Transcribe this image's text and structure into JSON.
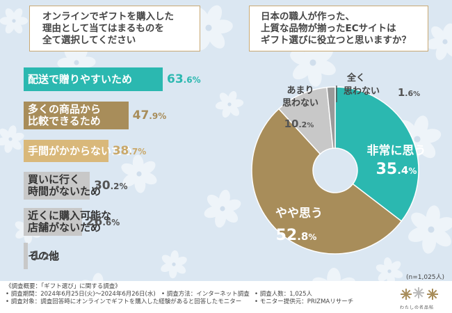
{
  "left_question": {
    "lines": [
      "オンラインでギフトを購入した",
      "理由として当てはまるものを",
      "全て選択してください"
    ]
  },
  "right_question": {
    "lines": [
      "日本の職人が作った、",
      "上質な品物が揃ったECサイトは",
      "ギフト選びに役立つと思いますか？"
    ]
  },
  "chart_data": [
    {
      "type": "bar",
      "orientation": "horizontal",
      "title": "オンラインでギフトを購入した理由として当てはまるものを全て選択してください",
      "unit": "%",
      "categories": [
        "配送で贈りやすいため",
        "多くの商品から比較できるため",
        "手間がかからないため",
        "買いに行く時間がないため",
        "近くに購入可能な店舗がないため",
        "その他"
      ],
      "values": [
        63.6,
        47.9,
        38.7,
        30.2,
        26.6,
        1.2
      ],
      "display": [
        {
          "label_lines": [
            "配送で贈りやすいため"
          ],
          "int": "63",
          "dec": ".6",
          "pct": "%",
          "color": "#2bb8b0",
          "text_color": "#ffffff",
          "pct_color": "#2bb8b0"
        },
        {
          "label_lines": [
            "多くの商品から",
            "比較できるため"
          ],
          "int": "47",
          "dec": ".9",
          "pct": "%",
          "color": "#a88d5a",
          "text_color": "#ffffff",
          "pct_color": "#a88d5a"
        },
        {
          "label_lines": [
            "手間がかからないため"
          ],
          "int": "38",
          "dec": ".7",
          "pct": "%",
          "color": "#d9b87a",
          "text_color": "#ffffff",
          "pct_color": "#c9a86a"
        },
        {
          "label_lines": [
            "買いに行く",
            "時間がないため"
          ],
          "int": "30",
          "dec": ".2",
          "pct": "%",
          "color": "#c8c8c8",
          "text_color": "#333333",
          "pct_color": "#555555"
        },
        {
          "label_lines": [
            "近くに購入可能な",
            "店舗がないため"
          ],
          "int": "26",
          "dec": ".6",
          "pct": "%",
          "color": "#c8c8c8",
          "text_color": "#333333",
          "pct_color": "#555555"
        },
        {
          "label_lines": [
            "その他"
          ],
          "int": "1",
          "dec": ".2",
          "pct": "%",
          "color": "#c8c8c8",
          "text_color": "#333333",
          "pct_color": "#555555"
        }
      ]
    },
    {
      "type": "pie",
      "style": "donut",
      "title": "日本の職人が作った、上質な品物が揃ったECサイトはギフト選びに役立つと思いますか？",
      "unit": "%",
      "categories": [
        "非常に思う",
        "やや思う",
        "あまり思わない",
        "全く思わない"
      ],
      "values": [
        35.4,
        52.8,
        10.2,
        1.6
      ],
      "colors": [
        "#2bb8b0",
        "#a88d5a",
        "#c8c8c8",
        "#9a9a9a"
      ],
      "display": [
        {
          "label": "非常に思う",
          "int": "35",
          "dec": ".4",
          "pct": "%",
          "inside": true
        },
        {
          "label": "やや思う",
          "int": "52",
          "dec": ".8",
          "pct": "%",
          "inside": true
        },
        {
          "label_lines": [
            "あまり",
            "思わない"
          ],
          "int": "10",
          "dec": ".2",
          "pct": "%",
          "inside": false
        },
        {
          "label_lines": [
            "全く",
            "思わない"
          ],
          "int": "1",
          "dec": ".6",
          "pct": "%",
          "inside": false
        }
      ],
      "sample_size": "(n=1,025人)"
    }
  ],
  "footer": {
    "overview": "《調査概要：「ギフト選び」に関する調査》",
    "period": "• 調査期間：2024年6月25日(火)〜2024年6月26日(水)",
    "method": "• 調査方法：インターネット調査",
    "count": "• 調査人数：1,025人",
    "target": "• 調査対象：調査回答時にオンラインでギフトを購入した経験があると回答したモニター",
    "provider": "• モニター提供元：PRIZMAリサーチ"
  },
  "logo": {
    "text": "わたしの名品帖",
    "color": "#a88d5a"
  }
}
